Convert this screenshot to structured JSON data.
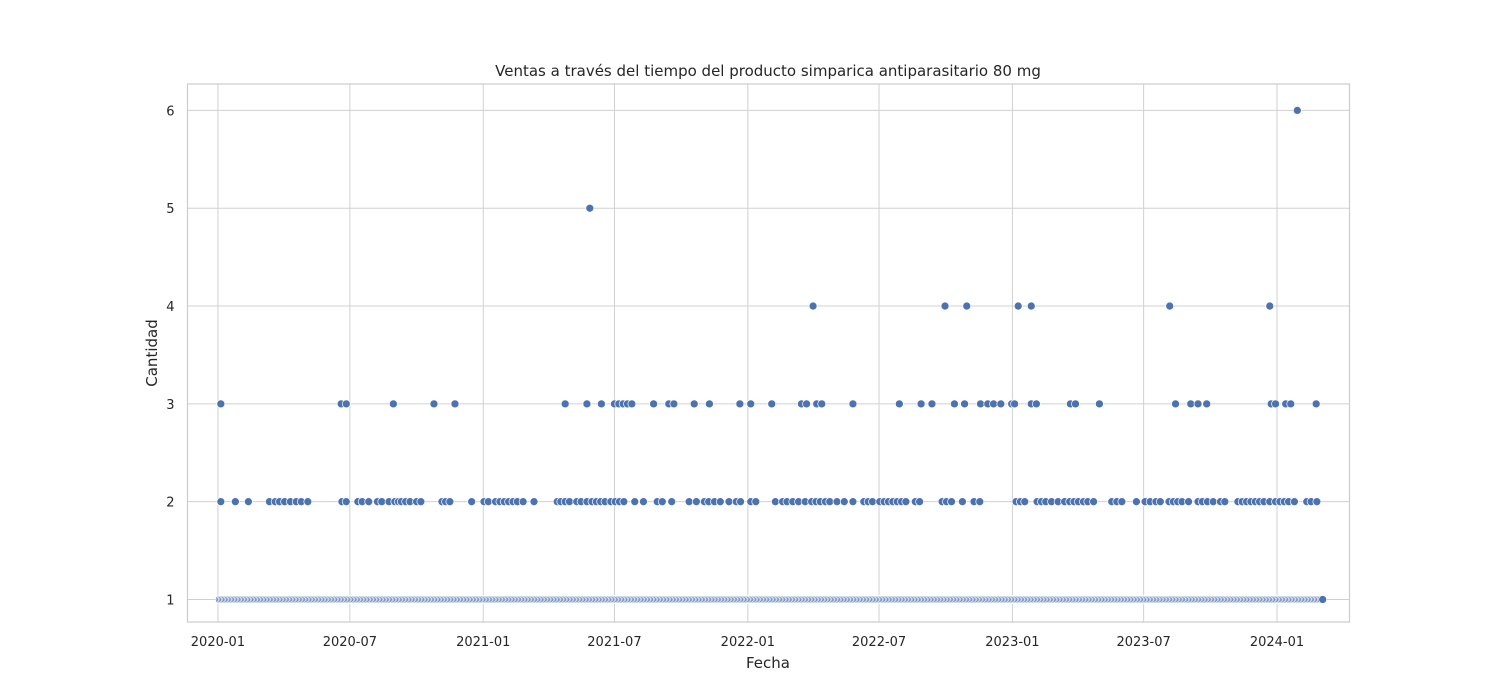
{
  "chart_data": {
    "type": "scatter",
    "title": "Ventas a través del tiempo del producto simparica antiparasitario 80 mg",
    "xlabel": "Fecha",
    "ylabel": "Cantidad",
    "x_ticks": [
      "2020-01",
      "2020-07",
      "2021-01",
      "2021-07",
      "2022-01",
      "2022-07",
      "2023-01",
      "2023-07",
      "2024-01"
    ],
    "y_ticks": [
      1,
      2,
      3,
      4,
      5,
      6
    ],
    "xlim": [
      "2019-11-20",
      "2024-04-10"
    ],
    "ylim": [
      0.77,
      6.27
    ],
    "grid": true,
    "point_color": "#4c72b0",
    "series": [
      {
        "y": 1,
        "dense_daily_from": "2020-01-03",
        "dense_daily_to": "2024-03-04",
        "points": []
      },
      {
        "y": 2,
        "points": [
          "2020-01-05",
          "2020-01-25",
          "2020-02-12",
          "2020-03-12",
          "2020-03-20",
          "2020-03-26",
          "2020-04-02",
          "2020-04-10",
          "2020-04-18",
          "2020-04-25",
          "2020-05-04",
          "2020-06-20",
          "2020-06-26",
          "2020-07-12",
          "2020-07-18",
          "2020-07-27",
          "2020-08-08",
          "2020-08-14",
          "2020-08-24",
          "2020-09-01",
          "2020-09-06",
          "2020-09-10",
          "2020-09-16",
          "2020-09-22",
          "2020-10-01",
          "2020-10-07",
          "2020-11-05",
          "2020-11-10",
          "2020-11-16",
          "2020-12-16",
          "2021-01-02",
          "2021-01-08",
          "2021-01-18",
          "2021-01-24",
          "2021-01-30",
          "2021-02-05",
          "2021-02-11",
          "2021-02-17",
          "2021-02-25",
          "2021-03-12",
          "2021-04-13",
          "2021-04-18",
          "2021-04-24",
          "2021-04-30",
          "2021-05-10",
          "2021-05-16",
          "2021-05-24",
          "2021-05-31",
          "2021-06-06",
          "2021-06-12",
          "2021-06-18",
          "2021-06-26",
          "2021-07-02",
          "2021-07-08",
          "2021-07-14",
          "2021-07-29",
          "2021-08-10",
          "2021-08-29",
          "2021-09-05",
          "2021-09-18",
          "2021-10-12",
          "2021-10-22",
          "2021-11-02",
          "2021-11-08",
          "2021-11-16",
          "2021-11-24",
          "2021-12-06",
          "2021-12-16",
          "2021-12-22",
          "2022-01-05",
          "2022-01-12",
          "2022-02-08",
          "2022-02-18",
          "2022-02-24",
          "2022-03-04",
          "2022-03-12",
          "2022-03-21",
          "2022-03-30",
          "2022-04-05",
          "2022-04-11",
          "2022-04-18",
          "2022-04-24",
          "2022-05-04",
          "2022-05-14",
          "2022-05-26",
          "2022-06-10",
          "2022-06-16",
          "2022-06-22",
          "2022-07-02",
          "2022-07-08",
          "2022-07-14",
          "2022-07-20",
          "2022-07-26",
          "2022-08-01",
          "2022-08-07",
          "2022-08-20",
          "2022-08-26",
          "2022-09-26",
          "2022-10-02",
          "2022-10-09",
          "2022-10-24",
          "2022-11-09",
          "2022-11-17",
          "2023-01-06",
          "2023-01-12",
          "2023-01-18",
          "2023-02-04",
          "2023-02-10",
          "2023-02-16",
          "2023-02-24",
          "2023-03-05",
          "2023-03-14",
          "2023-03-21",
          "2023-03-27",
          "2023-04-02",
          "2023-04-09",
          "2023-04-15",
          "2023-04-23",
          "2023-05-18",
          "2023-05-25",
          "2023-06-01",
          "2023-06-21",
          "2023-07-03",
          "2023-07-10",
          "2023-07-18",
          "2023-07-24",
          "2023-08-05",
          "2023-08-11",
          "2023-08-17",
          "2023-08-23",
          "2023-09-01",
          "2023-09-14",
          "2023-09-20",
          "2023-09-27",
          "2023-10-05",
          "2023-10-15",
          "2023-10-21",
          "2023-11-08",
          "2023-11-14",
          "2023-11-20",
          "2023-11-26",
          "2023-12-02",
          "2023-12-08",
          "2023-12-14",
          "2023-12-22",
          "2023-12-30",
          "2024-01-05",
          "2024-01-11",
          "2024-01-17",
          "2024-01-25",
          "2024-02-11",
          "2024-02-17",
          "2024-02-25"
        ]
      },
      {
        "y": 3,
        "points": [
          "2020-01-05",
          "2020-06-19",
          "2020-06-26",
          "2020-08-30",
          "2020-10-25",
          "2020-11-23",
          "2021-04-24",
          "2021-05-24",
          "2021-06-13",
          "2021-07-01",
          "2021-07-07",
          "2021-07-13",
          "2021-07-19",
          "2021-07-25",
          "2021-08-24",
          "2021-09-14",
          "2021-09-21",
          "2021-10-19",
          "2021-11-09",
          "2021-12-21",
          "2022-01-05",
          "2022-02-03",
          "2022-03-16",
          "2022-03-23",
          "2022-04-06",
          "2022-04-13",
          "2022-05-26",
          "2022-07-29",
          "2022-08-28",
          "2022-09-12",
          "2022-10-13",
          "2022-10-27",
          "2022-11-18",
          "2022-11-28",
          "2022-12-06",
          "2022-12-16",
          "2022-12-31",
          "2023-01-04",
          "2023-01-27",
          "2023-02-03",
          "2023-03-22",
          "2023-03-29",
          "2023-05-01",
          "2023-08-14",
          "2023-09-04",
          "2023-09-14",
          "2023-09-26",
          "2023-12-24",
          "2023-12-30",
          "2024-01-13",
          "2024-01-20",
          "2024-02-24"
        ]
      },
      {
        "y": 4,
        "points": [
          "2022-04-01",
          "2022-09-30",
          "2022-10-30",
          "2023-01-09",
          "2023-01-27",
          "2023-08-06",
          "2023-12-22"
        ]
      },
      {
        "y": 5,
        "points": [
          "2021-05-28"
        ]
      },
      {
        "y": 6,
        "points": [
          "2024-01-29"
        ]
      }
    ]
  }
}
